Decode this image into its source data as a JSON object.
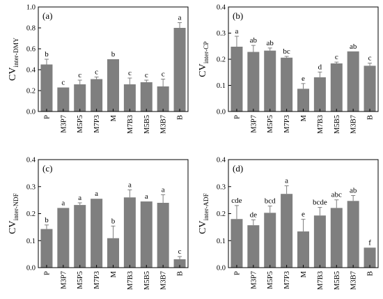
{
  "chart_data": [
    {
      "type": "bar",
      "panel_label": "(a)",
      "ylabel": "CV",
      "ylabel_subscript": "inter-DMY",
      "ylim": [
        0,
        1.0
      ],
      "yticks": [
        "0.0",
        "0.2",
        "0.4",
        "0.6",
        "0.8",
        "1.0"
      ],
      "categories": [
        "P",
        "M3P7",
        "M5P5",
        "M7P3",
        "M",
        "M7B3",
        "M5B5",
        "M3B7",
        "B"
      ],
      "values": [
        0.45,
        0.23,
        0.26,
        0.31,
        0.5,
        0.26,
        0.28,
        0.24,
        0.8
      ],
      "errors": [
        0.05,
        0.0,
        0.04,
        0.02,
        0.0,
        0.06,
        0.02,
        0.07,
        0.05
      ],
      "significance": [
        "b",
        "c",
        "c",
        "c",
        "b",
        "c",
        "c",
        "c",
        "a"
      ],
      "bar_color": "#7f7f7f"
    },
    {
      "type": "bar",
      "panel_label": "(b)",
      "ylabel": "CV",
      "ylabel_subscript": "inter-CP",
      "ylim": [
        0,
        0.4
      ],
      "yticks": [
        "0.0",
        "0.1",
        "0.2",
        "0.3",
        "0.4"
      ],
      "categories": [
        "P",
        "M3P7",
        "M5P5",
        "M7P3",
        "M",
        "M7B3",
        "M5B5",
        "M3B7",
        "B"
      ],
      "values": [
        0.248,
        0.228,
        0.233,
        0.206,
        0.087,
        0.131,
        0.184,
        0.23,
        0.175
      ],
      "errors": [
        0.04,
        0.025,
        0.01,
        0.005,
        0.02,
        0.02,
        0.005,
        0.0,
        0.01
      ],
      "significance": [
        "a",
        "ab",
        "ab",
        "bc",
        "e",
        "d",
        "c",
        "ab",
        "c"
      ],
      "bar_color": "#7f7f7f"
    },
    {
      "type": "bar",
      "panel_label": "(c)",
      "ylabel": "CV",
      "ylabel_subscript": "inter-NDF",
      "ylim": [
        0,
        0.4
      ],
      "yticks": [
        "0.0",
        "0.1",
        "0.2",
        "0.3",
        "0.4"
      ],
      "categories": [
        "P",
        "M3P7",
        "M5P5",
        "M7P3",
        "M",
        "M7B3",
        "M5B5",
        "M3B7",
        "B"
      ],
      "values": [
        0.143,
        0.221,
        0.232,
        0.255,
        0.109,
        0.26,
        0.245,
        0.24,
        0.031
      ],
      "errors": [
        0.015,
        0.0,
        0.008,
        0.0,
        0.045,
        0.028,
        0.0,
        0.03,
        0.01
      ],
      "significance": [
        "b",
        "a",
        "a",
        "a",
        "b",
        "a",
        "a",
        "a",
        "c"
      ],
      "bar_color": "#7f7f7f"
    },
    {
      "type": "bar",
      "panel_label": "(d)",
      "ylabel": "CV",
      "ylabel_subscript": "inter-ADF",
      "ylim": [
        0,
        0.4
      ],
      "yticks": [
        "0.0",
        "0.1",
        "0.2",
        "0.3",
        "0.4"
      ],
      "categories": [
        "P",
        "M3P7",
        "M5P5",
        "M7P3",
        "M",
        "M7B3",
        "M5B5",
        "M3B7",
        "B"
      ],
      "values": [
        0.18,
        0.157,
        0.203,
        0.273,
        0.134,
        0.193,
        0.221,
        0.247,
        0.074
      ],
      "errors": [
        0.05,
        0.02,
        0.025,
        0.03,
        0.045,
        0.03,
        0.03,
        0.02,
        0.0
      ],
      "significance": [
        "cde",
        "de",
        "bcd",
        "a",
        "e",
        "bcde",
        "abc",
        "ab",
        "f"
      ],
      "bar_color": "#7f7f7f"
    }
  ]
}
